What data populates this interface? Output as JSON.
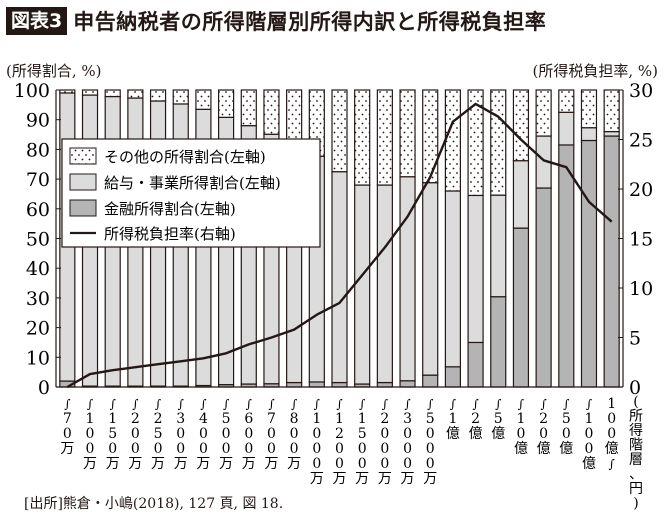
{
  "header": {
    "badge": "図表3",
    "title": "申告納税者の所得階層別所得内訳と所得税負担率"
  },
  "axes": {
    "left_title": "(所得割合, %)",
    "right_title": "(所得税負担率, %)",
    "x_title": "(所得階層、円)"
  },
  "source": "[出所]熊倉・小嶋(2018), 127 頁, 図 18.",
  "colors": {
    "financial": "#b4b4b4",
    "salary": "#dcdcdc",
    "other": "#ffffff",
    "line": "#231815",
    "frame": "#231815"
  },
  "chart_data": {
    "type": "bar",
    "stacked": true,
    "title": "申告納税者の所得階層別所得内訳と所得税負担率",
    "xlabel": "所得階層、円",
    "ylabel": "所得割合, %",
    "y2label": "所得税負担率, %",
    "ylim": [
      0,
      100
    ],
    "y2lim": [
      0,
      30
    ],
    "yticks": [
      0,
      10,
      20,
      30,
      40,
      50,
      60,
      70,
      80,
      90,
      100
    ],
    "y2ticks": [
      0,
      5,
      10,
      15,
      20,
      25,
      30
    ],
    "categories": [
      "~70万",
      "~100万",
      "~150万",
      "~200万",
      "~250万",
      "~300万",
      "~400万",
      "~500万",
      "~600万",
      "~700万",
      "~800万",
      "~1000万",
      "~1200万",
      "~1500万",
      "~2000万",
      "~3000万",
      "~5000万",
      "~1億",
      "~2億",
      "~5億",
      "~10億",
      "~20億",
      "~50億",
      "~100億",
      "100億~"
    ],
    "category_labels_vertical": [
      [
        "〜",
        "7",
        "0",
        "万"
      ],
      [
        "〜",
        "1",
        "0",
        "0",
        "万"
      ],
      [
        "〜",
        "1",
        "5",
        "0",
        "万"
      ],
      [
        "〜",
        "2",
        "0",
        "0",
        "万"
      ],
      [
        "〜",
        "2",
        "5",
        "0",
        "万"
      ],
      [
        "〜",
        "3",
        "0",
        "0",
        "万"
      ],
      [
        "〜",
        "4",
        "0",
        "0",
        "万"
      ],
      [
        "〜",
        "5",
        "0",
        "0",
        "万"
      ],
      [
        "〜",
        "6",
        "0",
        "0",
        "万"
      ],
      [
        "〜",
        "7",
        "0",
        "0",
        "万"
      ],
      [
        "〜",
        "8",
        "0",
        "0",
        "万"
      ],
      [
        "〜",
        "1",
        "0",
        "0",
        "0",
        "万"
      ],
      [
        "〜",
        "1",
        "2",
        "0",
        "0",
        "万"
      ],
      [
        "〜",
        "1",
        "5",
        "0",
        "0",
        "万"
      ],
      [
        "〜",
        "2",
        "0",
        "0",
        "0",
        "万"
      ],
      [
        "〜",
        "3",
        "0",
        "0",
        "0",
        "万"
      ],
      [
        "〜",
        "5",
        "0",
        "0",
        "0",
        "万"
      ],
      [
        "〜",
        "1",
        "億"
      ],
      [
        "〜",
        "2",
        "億"
      ],
      [
        "〜",
        "5",
        "億"
      ],
      [
        "〜",
        "1",
        "0",
        "億"
      ],
      [
        "〜",
        "2",
        "0",
        "億"
      ],
      [
        "〜",
        "5",
        "0",
        "億"
      ],
      [
        "〜",
        "1",
        "0",
        "0",
        "億"
      ],
      [
        "1",
        "0",
        "0",
        "億",
        "〜"
      ]
    ],
    "legend": [
      "その他の所得割合(左軸)",
      "給与・事業所得割合(左軸)",
      "金融所得割合(左軸)",
      "所得税負担率(右軸)"
    ],
    "legend_position": "upper-left (inside plot)",
    "series": [
      {
        "name": "金融所得割合(左軸)",
        "axis": "left",
        "kind": "bar",
        "values": [
          2.0,
          0.3,
          0.3,
          0.3,
          0.3,
          0.3,
          0.5,
          0.8,
          1.0,
          1.1,
          1.5,
          1.7,
          1.5,
          1.0,
          1.5,
          2.1,
          4.0,
          6.8,
          15.0,
          30.4,
          53.5,
          67.0,
          81.5,
          83.0,
          84.5
        ]
      },
      {
        "name": "給与・事業所得割合(左軸)",
        "axis": "left",
        "kind": "bar",
        "values": [
          97.0,
          98.0,
          97.5,
          97.0,
          96.0,
          95.0,
          93.0,
          90.0,
          87.0,
          84.0,
          80.0,
          76.0,
          71.0,
          67.0,
          66.5,
          68.7,
          64.8,
          59.2,
          49.5,
          34.2,
          22.7,
          17.5,
          11.0,
          4.3,
          1.5
        ]
      },
      {
        "name": "その他の所得割合(左軸)",
        "axis": "left",
        "kind": "bar",
        "values": [
          1.0,
          1.7,
          2.2,
          2.7,
          3.7,
          4.7,
          6.5,
          9.2,
          12.0,
          14.9,
          18.5,
          22.3,
          27.5,
          32.0,
          32.0,
          29.2,
          31.2,
          34.0,
          35.5,
          35.4,
          23.8,
          15.5,
          7.5,
          12.7,
          14.0
        ]
      },
      {
        "name": "所得税負担率(右軸)",
        "axis": "right",
        "kind": "line",
        "values": [
          0.0,
          1.3,
          1.7,
          2.0,
          2.3,
          2.6,
          2.9,
          3.4,
          4.3,
          5.0,
          5.8,
          7.3,
          8.5,
          11.3,
          14.1,
          17.2,
          21.2,
          26.8,
          28.6,
          27.3,
          25.0,
          22.9,
          22.2,
          18.7,
          16.7
        ]
      }
    ],
    "grid": false
  },
  "legend_labels": {
    "other": "その他の所得割合(左軸)",
    "salary": "給与・事業所得割合(左軸)",
    "financial": "金融所得割合(左軸)",
    "line": "所得税負担率(右軸)"
  }
}
